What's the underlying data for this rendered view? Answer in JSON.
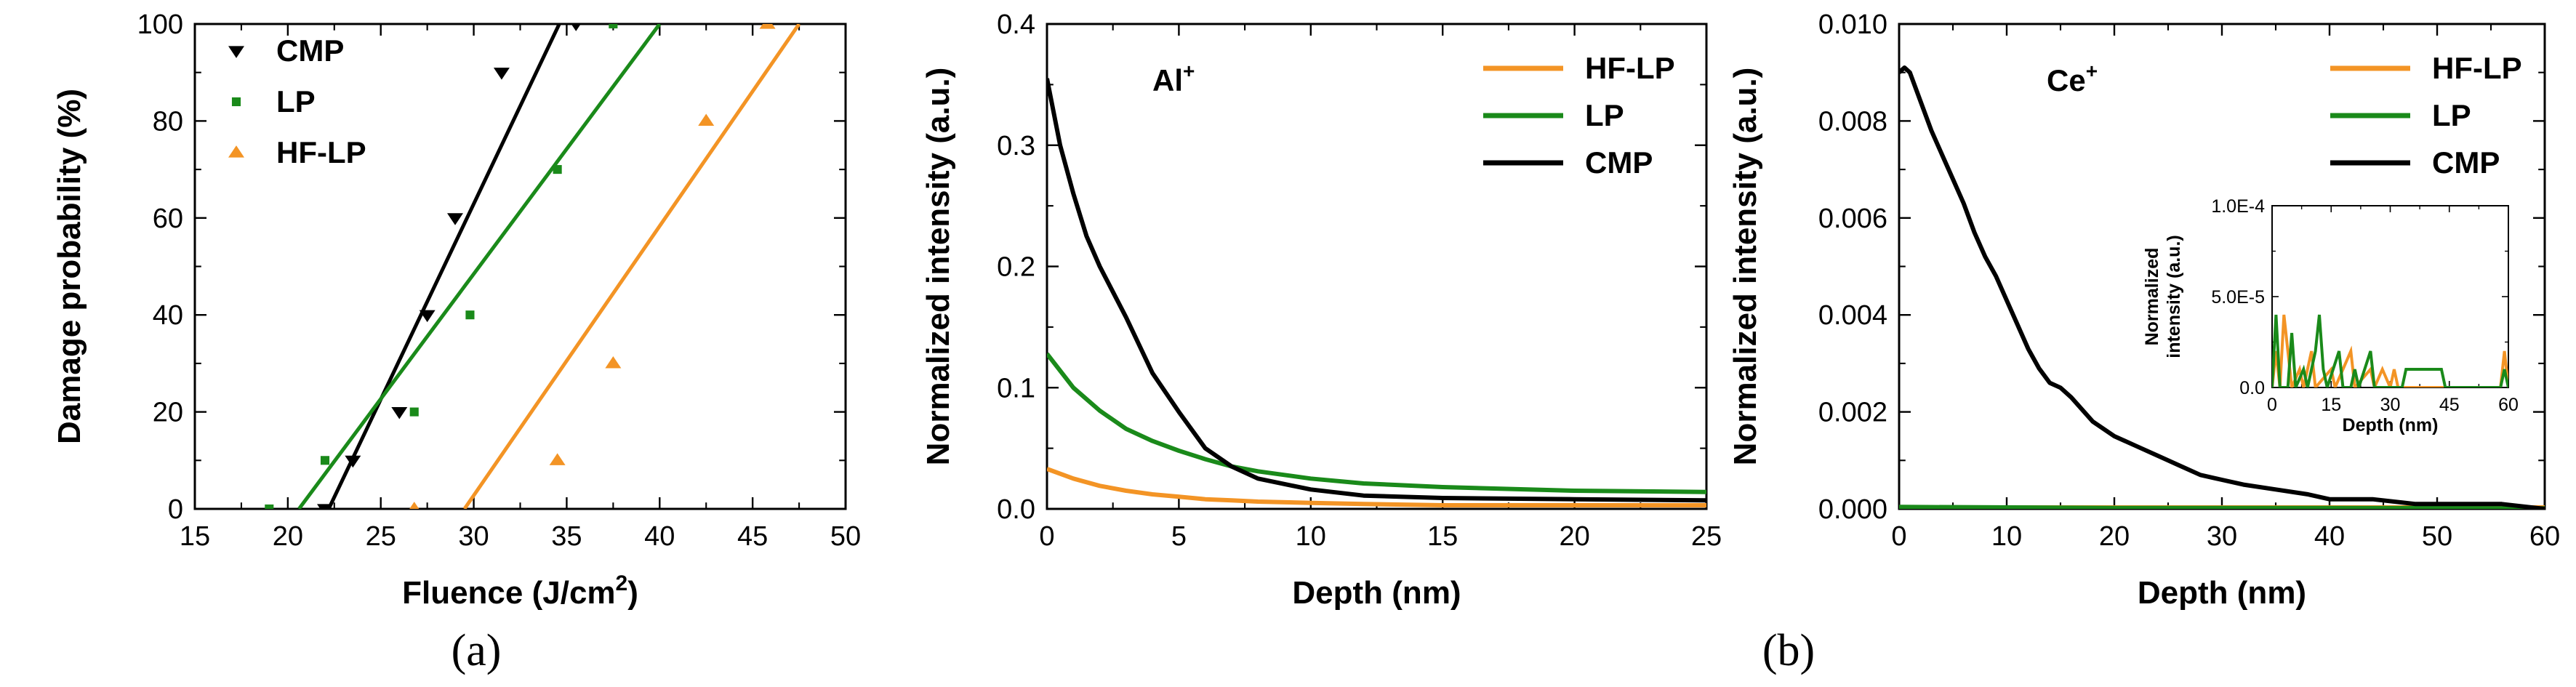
{
  "chart_data": [
    {
      "type": "scatter",
      "xlabel": "Fluence (J/cm",
      "xlabel_sup": "2",
      "xlabel_end": ")",
      "ylabel": "Damage probability (%)",
      "xlim": [
        15,
        50
      ],
      "ylim": [
        0,
        100
      ],
      "xticks": [
        15,
        20,
        25,
        30,
        35,
        40,
        45,
        50
      ],
      "yticks": [
        0,
        20,
        40,
        60,
        80,
        100
      ],
      "legend": "top-left",
      "series": [
        {
          "name": "CMP",
          "marker": "triangle-down",
          "color": "#000000",
          "points": [
            [
              22.0,
              0
            ],
            [
              23.5,
              10
            ],
            [
              26.0,
              20
            ],
            [
              27.5,
              40
            ],
            [
              29.0,
              60
            ],
            [
              31.5,
              90
            ],
            [
              35.5,
              100
            ]
          ],
          "fit": [
            [
              22.2,
              0
            ],
            [
              34.6,
              100
            ]
          ]
        },
        {
          "name": "LP",
          "marker": "square",
          "color": "#1a8a1a",
          "points": [
            [
              19.0,
              0
            ],
            [
              22.0,
              10
            ],
            [
              26.8,
              20
            ],
            [
              29.8,
              40
            ],
            [
              34.5,
              70
            ],
            [
              37.5,
              100
            ]
          ],
          "fit": [
            [
              20.6,
              0
            ],
            [
              40.0,
              100
            ]
          ]
        },
        {
          "name": "HF-LP",
          "marker": "triangle-up",
          "color": "#f39425",
          "points": [
            [
              26.8,
              0
            ],
            [
              34.5,
              10
            ],
            [
              37.5,
              30
            ],
            [
              42.5,
              80
            ],
            [
              45.8,
              100
            ]
          ],
          "fit": [
            [
              29.5,
              0
            ],
            [
              47.5,
              100
            ]
          ]
        }
      ]
    },
    {
      "type": "line",
      "annotation": "Al",
      "annotation_sup": "+",
      "xlabel": "Depth (nm)",
      "ylabel": "Normalized intensity (a.u.)",
      "xlim": [
        0,
        25
      ],
      "ylim": [
        0,
        0.4
      ],
      "xticks": [
        0,
        5,
        10,
        15,
        20,
        25
      ],
      "yticks": [
        "0.0",
        "0.1",
        "0.2",
        "0.3",
        "0.4"
      ],
      "legend": "top-right",
      "series": [
        {
          "name": "HF-LP",
          "color": "#f39425",
          "points": [
            [
              0,
              0.033
            ],
            [
              1,
              0.025
            ],
            [
              2,
              0.019
            ],
            [
              3,
              0.015
            ],
            [
              4,
              0.012
            ],
            [
              5,
              0.01
            ],
            [
              6,
              0.008
            ],
            [
              7,
              0.007
            ],
            [
              8,
              0.006
            ],
            [
              10,
              0.005
            ],
            [
              12,
              0.004
            ],
            [
              15,
              0.003
            ],
            [
              20,
              0.003
            ],
            [
              25,
              0.003
            ]
          ]
        },
        {
          "name": "LP",
          "color": "#1a8a1a",
          "points": [
            [
              0,
              0.128
            ],
            [
              1,
              0.1
            ],
            [
              2,
              0.081
            ],
            [
              3,
              0.066
            ],
            [
              4,
              0.056
            ],
            [
              5,
              0.048
            ],
            [
              6,
              0.041
            ],
            [
              7,
              0.035
            ],
            [
              8,
              0.031
            ],
            [
              9,
              0.028
            ],
            [
              10,
              0.025
            ],
            [
              12,
              0.021
            ],
            [
              15,
              0.018
            ],
            [
              20,
              0.015
            ],
            [
              25,
              0.014
            ]
          ]
        },
        {
          "name": "CMP",
          "color": "#000000",
          "points": [
            [
              0,
              0.355
            ],
            [
              0.5,
              0.3
            ],
            [
              1,
              0.26
            ],
            [
              1.5,
              0.225
            ],
            [
              2,
              0.2
            ],
            [
              3,
              0.158
            ],
            [
              4,
              0.112
            ],
            [
              5,
              0.08
            ],
            [
              6,
              0.05
            ],
            [
              7,
              0.035
            ],
            [
              8,
              0.025
            ],
            [
              10,
              0.016
            ],
            [
              12,
              0.011
            ],
            [
              15,
              0.009
            ],
            [
              20,
              0.008
            ],
            [
              25,
              0.007
            ]
          ]
        }
      ]
    },
    {
      "type": "line",
      "annotation": "Ce",
      "annotation_sup": "+",
      "xlabel": "Depth (nm)",
      "ylabel": "Normalized intensity (a.u.)",
      "xlim": [
        0,
        60
      ],
      "ylim": [
        0,
        0.01
      ],
      "xticks": [
        0,
        10,
        20,
        30,
        40,
        50,
        60
      ],
      "yticks": [
        "0.000",
        "0.002",
        "0.004",
        "0.006",
        "0.008",
        "0.010"
      ],
      "legend": "top-right",
      "series": [
        {
          "name": "HF-LP",
          "color": "#f39425",
          "points": [
            [
              0,
              3e-05
            ],
            [
              60,
              3e-05
            ]
          ]
        },
        {
          "name": "LP",
          "color": "#1a8a1a",
          "points": [
            [
              0,
              4e-05
            ],
            [
              20,
              2e-05
            ],
            [
              40,
              2e-05
            ],
            [
              60,
              1e-05
            ]
          ]
        },
        {
          "name": "CMP",
          "color": "#000000",
          "points": [
            [
              0,
              0.009
            ],
            [
              0.5,
              0.0091
            ],
            [
              1,
              0.009
            ],
            [
              2,
              0.0084
            ],
            [
              3,
              0.0078
            ],
            [
              4,
              0.0073
            ],
            [
              5,
              0.0068
            ],
            [
              6,
              0.0063
            ],
            [
              7,
              0.0057
            ],
            [
              8,
              0.0052
            ],
            [
              9,
              0.0048
            ],
            [
              10,
              0.0043
            ],
            [
              11,
              0.0038
            ],
            [
              12,
              0.0033
            ],
            [
              13,
              0.0029
            ],
            [
              14,
              0.0026
            ],
            [
              15,
              0.0025
            ],
            [
              16,
              0.0023
            ],
            [
              18,
              0.0018
            ],
            [
              20,
              0.0015
            ],
            [
              22,
              0.0013
            ],
            [
              24,
              0.0011
            ],
            [
              26,
              0.0009
            ],
            [
              28,
              0.0007
            ],
            [
              30,
              0.0006
            ],
            [
              32,
              0.0005
            ],
            [
              35,
              0.0004
            ],
            [
              38,
              0.0003
            ],
            [
              40,
              0.0002
            ],
            [
              44,
              0.0002
            ],
            [
              48,
              0.0001
            ],
            [
              52,
              0.0001
            ],
            [
              56,
              0.0001
            ],
            [
              60,
              0.0
            ]
          ]
        }
      ],
      "inset": {
        "xlabel": "Depth (nm)",
        "ylabel_line1": "Normalized",
        "ylabel_line2": "intensity (a.u.)",
        "xlim": [
          0,
          60
        ],
        "ylim": [
          0,
          0.0001
        ],
        "xticks": [
          0,
          15,
          30,
          45,
          60
        ],
        "yticks": [
          "0.0",
          "5.0E-5",
          "1.0E-4"
        ],
        "series": [
          {
            "name": "HF-LP",
            "color": "#f39425",
            "points": [
              [
                0,
                0
              ],
              [
                1,
                2e-05
              ],
              [
                2,
                0
              ],
              [
                3,
                4e-05
              ],
              [
                4,
                2e-05
              ],
              [
                5,
                0
              ],
              [
                7,
                1e-05
              ],
              [
                8,
                0
              ],
              [
                10,
                2e-05
              ],
              [
                11,
                0
              ],
              [
                15,
                1e-05
              ],
              [
                16,
                0
              ],
              [
                20,
                2e-05
              ],
              [
                21,
                0
              ],
              [
                25,
                1e-05
              ],
              [
                26,
                0
              ],
              [
                28,
                1e-05
              ],
              [
                30,
                0
              ],
              [
                31,
                1e-05
              ],
              [
                32,
                0
              ],
              [
                58,
                0
              ],
              [
                59,
                2e-05
              ],
              [
                60,
                0
              ]
            ]
          },
          {
            "name": "LP",
            "color": "#1a8a1a",
            "points": [
              [
                0,
                0
              ],
              [
                1,
                4e-05
              ],
              [
                2,
                0
              ],
              [
                4,
                0
              ],
              [
                5,
                3e-05
              ],
              [
                6,
                0
              ],
              [
                8,
                1e-05
              ],
              [
                9,
                0
              ],
              [
                11,
                2e-05
              ],
              [
                12,
                4e-05
              ],
              [
                13,
                1e-05
              ],
              [
                14,
                0
              ],
              [
                17,
                2e-05
              ],
              [
                18,
                0
              ],
              [
                20,
                0
              ],
              [
                21,
                1e-05
              ],
              [
                22,
                0
              ],
              [
                25,
                2e-05
              ],
              [
                26,
                0
              ],
              [
                33,
                0
              ],
              [
                34,
                1e-05
              ],
              [
                43,
                1e-05
              ],
              [
                44,
                0
              ],
              [
                58,
                0
              ],
              [
                59,
                1e-05
              ],
              [
                60,
                0
              ]
            ]
          }
        ]
      }
    }
  ],
  "subfigure_labels": [
    "(a)",
    "(b)"
  ]
}
